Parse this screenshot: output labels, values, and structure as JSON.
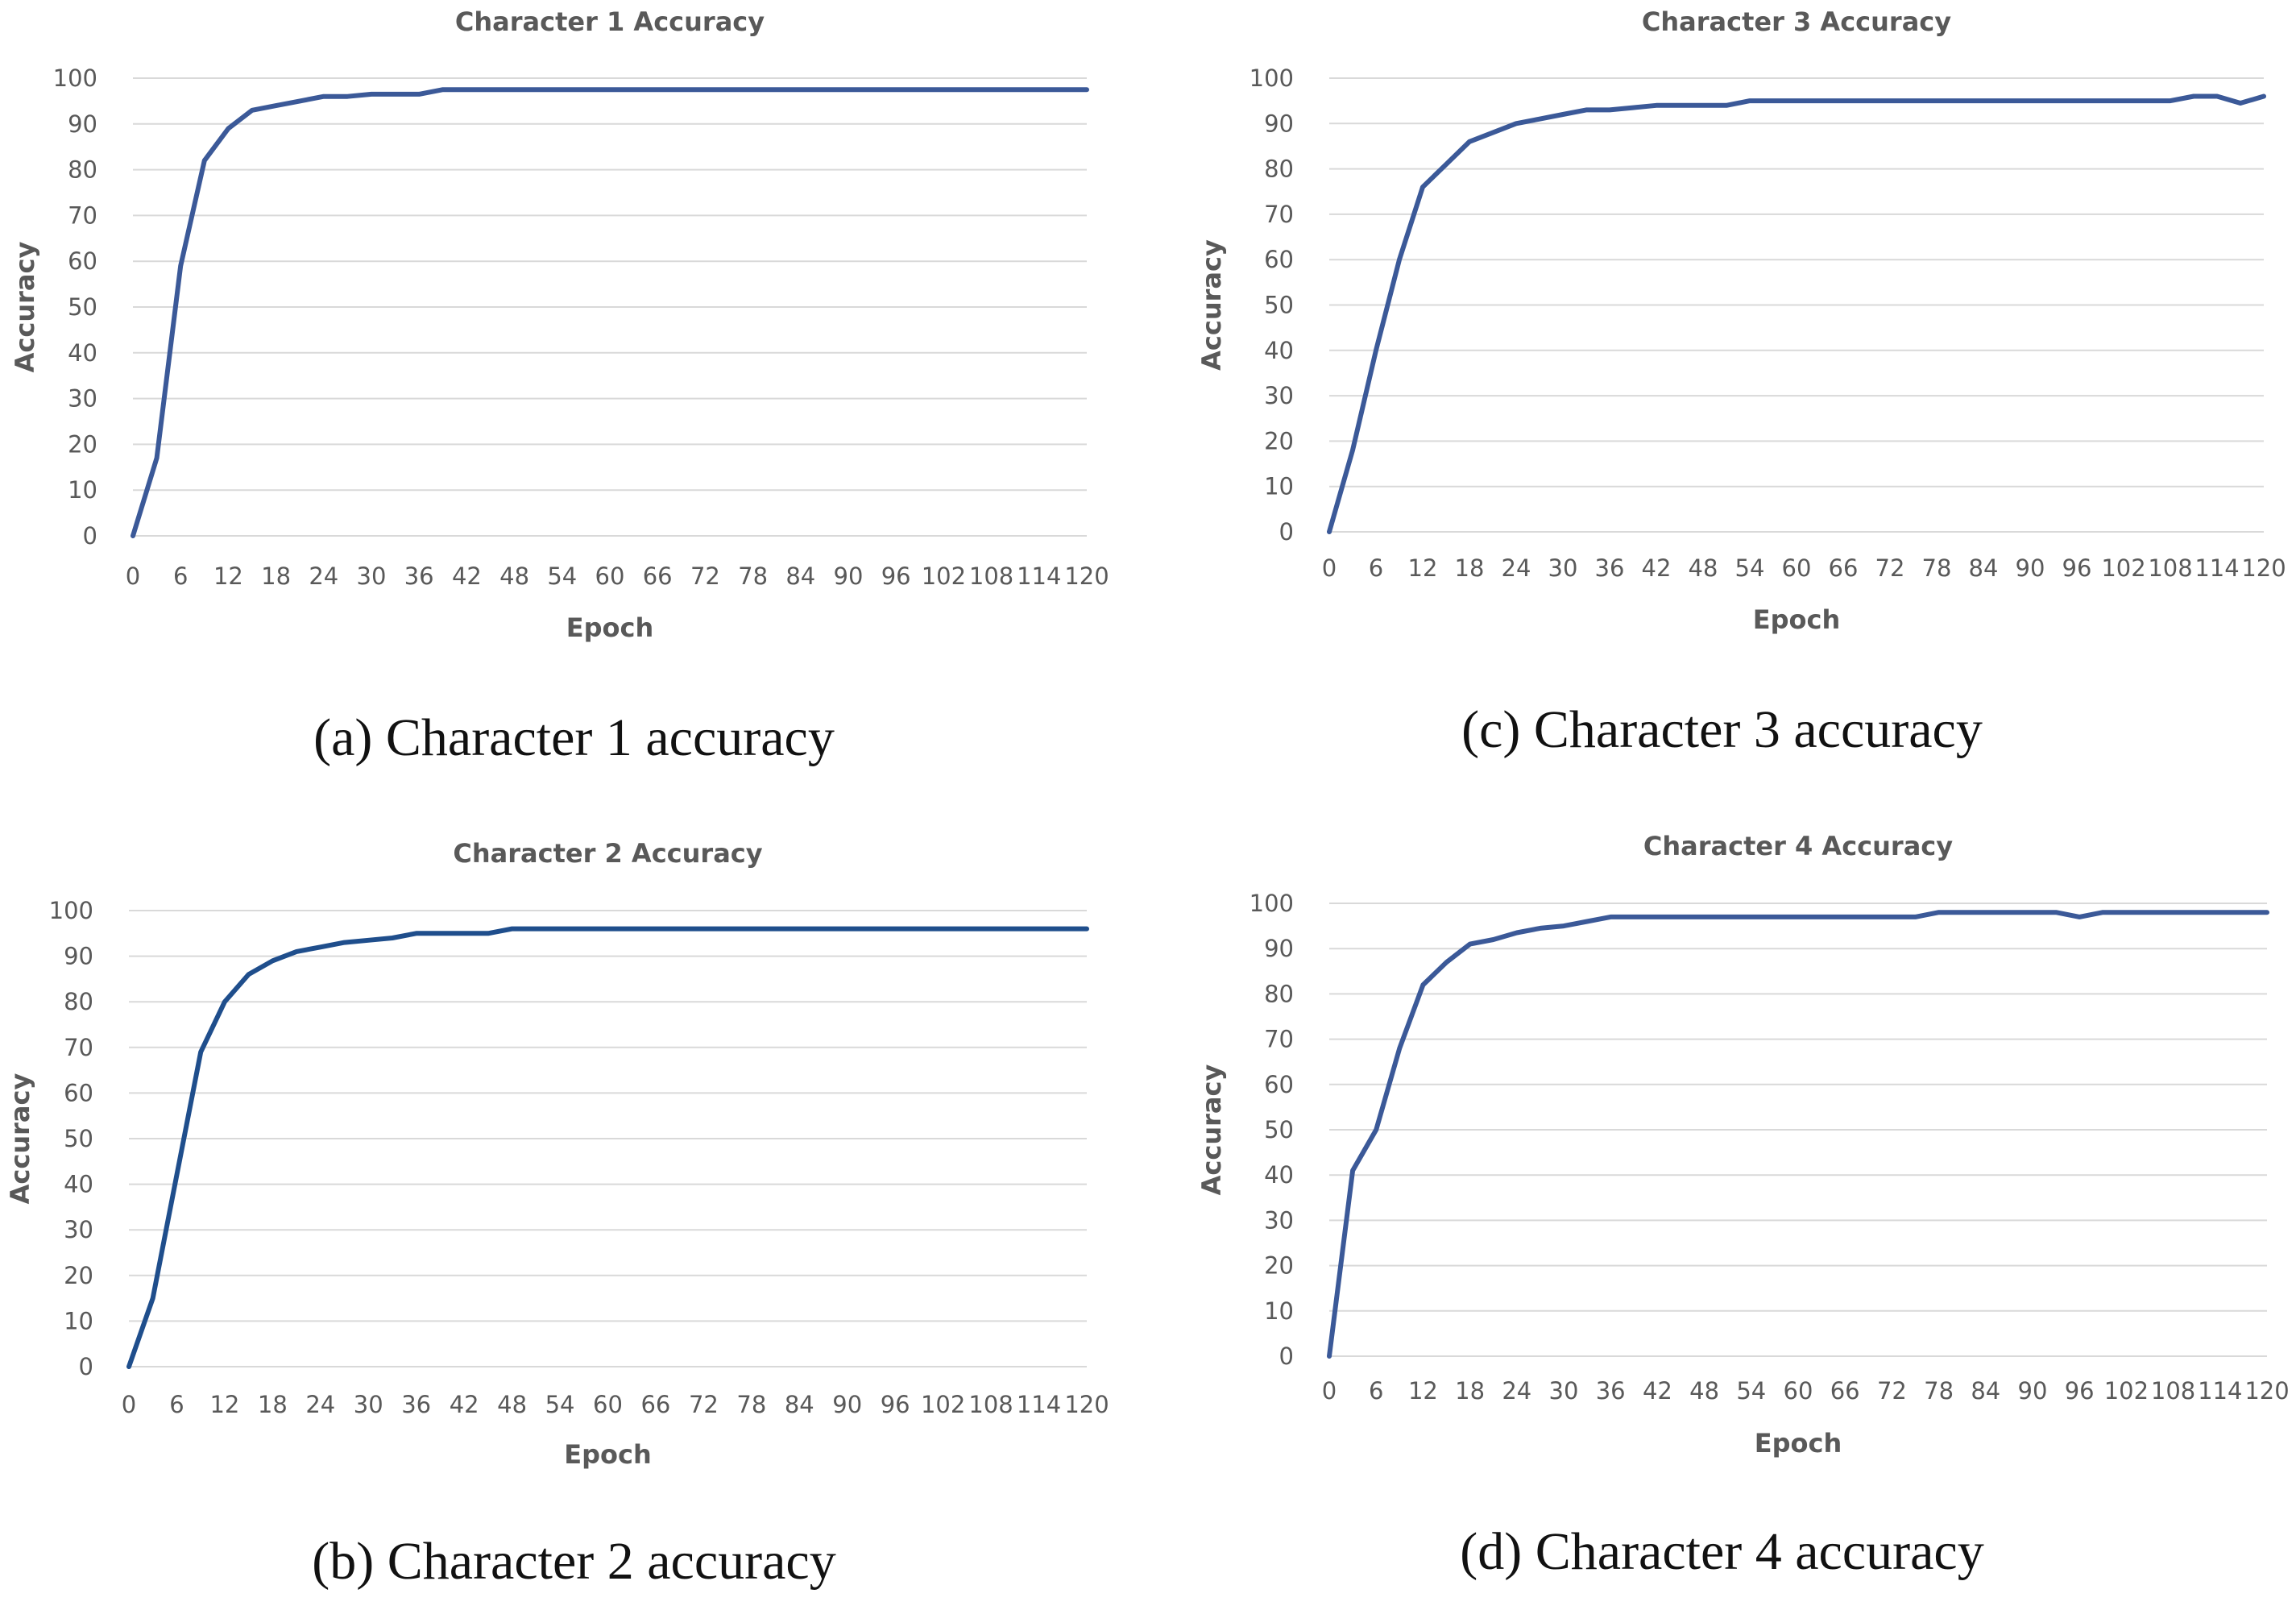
{
  "chart_data": [
    {
      "type": "line",
      "title": "Character 1 Accuracy",
      "xlabel": "Epoch",
      "ylabel": "Accuracy",
      "caption": "(a) Character 1 accuracy",
      "x_ticks": [
        "0",
        "6",
        "12",
        "18",
        "24",
        "30",
        "36",
        "42",
        "48",
        "54",
        "60",
        "66",
        "72",
        "78",
        "84",
        "90",
        "96",
        "102",
        "108",
        "114",
        "120"
      ],
      "ylim": [
        0,
        100
      ],
      "y_ticks": [
        0,
        10,
        20,
        30,
        40,
        50,
        60,
        70,
        80,
        90,
        100
      ],
      "grid": true,
      "series": [
        {
          "color": "#3b5998",
          "x": [
            0,
            3,
            6,
            9,
            12,
            15,
            18,
            21,
            24,
            27,
            30,
            33,
            36,
            39,
            120
          ],
          "y": [
            0,
            17,
            59,
            82,
            89,
            93,
            94,
            95,
            96,
            96,
            96.5,
            96.5,
            96.5,
            97.5,
            97.5
          ]
        }
      ]
    },
    {
      "type": "line",
      "title": "Character 3 Accuracy",
      "xlabel": "Epoch",
      "ylabel": "Accuracy",
      "caption": "(c) Character 3 accuracy",
      "x_ticks": [
        "0",
        "6",
        "12",
        "18",
        "24",
        "30",
        "36",
        "42",
        "48",
        "54",
        "60",
        "66",
        "72",
        "78",
        "84",
        "90",
        "96",
        "102",
        "108",
        "114",
        "120"
      ],
      "ylim": [
        0,
        100
      ],
      "y_ticks": [
        0,
        10,
        20,
        30,
        40,
        50,
        60,
        70,
        80,
        90,
        100
      ],
      "grid": true,
      "series": [
        {
          "color": "#3b5998",
          "x": [
            0,
            3,
            6,
            9,
            12,
            15,
            18,
            21,
            24,
            27,
            30,
            33,
            36,
            39,
            42,
            45,
            48,
            51,
            54,
            108,
            111,
            114,
            117,
            120
          ],
          "y": [
            0,
            18,
            40,
            60,
            76,
            81,
            86,
            88,
            90,
            91,
            92,
            93,
            93,
            93.5,
            94,
            94,
            94,
            94,
            95,
            95,
            96,
            96,
            94.5,
            96
          ]
        }
      ]
    },
    {
      "type": "line",
      "title": "Character 2 Accuracy",
      "xlabel": "Epoch",
      "ylabel": "Accuracy",
      "caption": "(b) Character 2 accuracy",
      "x_ticks": [
        "0",
        "6",
        "12",
        "18",
        "24",
        "30",
        "36",
        "42",
        "48",
        "54",
        "60",
        "66",
        "72",
        "78",
        "84",
        "90",
        "96",
        "102",
        "108",
        "114",
        "120"
      ],
      "ylim": [
        0,
        100
      ],
      "y_ticks": [
        0,
        10,
        20,
        30,
        40,
        50,
        60,
        70,
        80,
        90,
        100
      ],
      "grid": true,
      "series": [
        {
          "color": "#1f4e8c",
          "x": [
            0,
            3,
            6,
            9,
            12,
            15,
            18,
            21,
            24,
            27,
            30,
            33,
            36,
            39,
            42,
            45,
            48,
            120
          ],
          "y": [
            0,
            15,
            42,
            69,
            80,
            86,
            89,
            91,
            92,
            93,
            93.5,
            94,
            95,
            95,
            95,
            95,
            96,
            96
          ]
        }
      ]
    },
    {
      "type": "line",
      "title": "Character 4 Accuracy",
      "xlabel": "Epoch",
      "ylabel": "Accuracy",
      "caption": "(d) Character 4 accuracy",
      "x_ticks": [
        "0",
        "6",
        "12",
        "18",
        "24",
        "30",
        "36",
        "42",
        "48",
        "54",
        "60",
        "66",
        "72",
        "78",
        "84",
        "90",
        "96",
        "102",
        "108",
        "114",
        "120"
      ],
      "ylim": [
        0,
        100
      ],
      "y_ticks": [
        0,
        10,
        20,
        30,
        40,
        50,
        60,
        70,
        80,
        90,
        100
      ],
      "grid": true,
      "series": [
        {
          "color": "#3b5998",
          "x": [
            0,
            3,
            6,
            9,
            12,
            15,
            18,
            21,
            24,
            27,
            30,
            33,
            36,
            75,
            78,
            93,
            96,
            99,
            120
          ],
          "y": [
            0,
            41,
            50,
            68,
            82,
            87,
            91,
            92,
            93.5,
            94.5,
            95,
            96,
            97,
            97,
            98,
            98,
            97,
            98,
            98
          ]
        }
      ]
    }
  ]
}
